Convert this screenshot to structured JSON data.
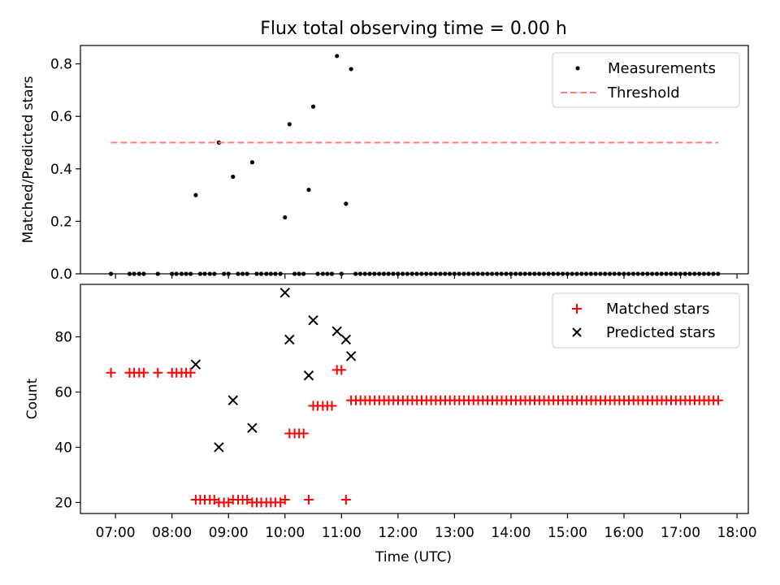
{
  "figure": {
    "title": "Flux total observing time = 0.00 h",
    "xlabel": "Time (UTC)"
  },
  "chart_data": [
    {
      "type": "scatter",
      "panel": "top",
      "title": "Flux total observing time = 0.00 h",
      "xlabel": "",
      "ylabel": "Matched/Predicted stars",
      "x_unit": "UTC hour",
      "xlim": [
        6.38,
        18.2
      ],
      "ylim": [
        0.0,
        0.87
      ],
      "yticks": [
        0.0,
        0.2,
        0.4,
        0.6,
        0.8
      ],
      "ytick_labels": [
        "0.0",
        "0.2",
        "0.4",
        "0.6",
        "0.8"
      ],
      "xticks": [
        7,
        8,
        9,
        10,
        11,
        12,
        13,
        14,
        15,
        16,
        17,
        18
      ],
      "xtick_labels": [
        "07:00",
        "08:00",
        "09:00",
        "10:00",
        "11:00",
        "12:00",
        "13:00",
        "14:00",
        "15:00",
        "16:00",
        "17:00",
        "18:00"
      ],
      "grid": false,
      "legend_position": "top-right",
      "series": [
        {
          "name": "Measurements",
          "marker": "dot",
          "color": "#000000",
          "x": [
            6.92,
            7.25,
            7.33,
            7.42,
            7.5,
            7.75,
            8.0,
            8.08,
            8.17,
            8.25,
            8.33,
            8.42,
            8.5,
            8.58,
            8.67,
            8.75,
            8.83,
            8.92,
            9.0,
            9.08,
            9.17,
            9.25,
            9.33,
            9.42,
            9.5,
            9.58,
            9.67,
            9.75,
            9.83,
            9.92,
            10.0,
            10.08,
            10.17,
            10.25,
            10.33,
            10.42,
            10.5,
            10.58,
            10.67,
            10.75,
            10.83,
            10.92,
            11.0,
            11.08,
            11.17
          ],
          "y": [
            0,
            0,
            0,
            0,
            0,
            0,
            0,
            0,
            0,
            0,
            0,
            0.3,
            0,
            0,
            0,
            0,
            0.5,
            0,
            0,
            0.37,
            0,
            0,
            0,
            0.425,
            0,
            0,
            0,
            0,
            0,
            0,
            0.215,
            0.57,
            0,
            0,
            0,
            0.32,
            0.637,
            0,
            0,
            0,
            0,
            0.83,
            0,
            0.267,
            0.78
          ],
          "extra_zero_x_range": [
            11.25,
            17.67
          ],
          "extra_zero_x_step": 0.0833
        },
        {
          "name": "Threshold",
          "type": "line",
          "style": "dashed",
          "color": "#ff7f7f",
          "x": [
            6.92,
            17.67
          ],
          "y": [
            0.5,
            0.5
          ]
        }
      ]
    },
    {
      "type": "scatter",
      "panel": "bottom",
      "xlabel": "Time (UTC)",
      "ylabel": "Count",
      "x_unit": "UTC hour",
      "xlim": [
        6.38,
        18.2
      ],
      "ylim": [
        16,
        99
      ],
      "yticks": [
        20,
        40,
        60,
        80
      ],
      "ytick_labels": [
        "20",
        "40",
        "60",
        "80"
      ],
      "xticks": [
        7,
        8,
        9,
        10,
        11,
        12,
        13,
        14,
        15,
        16,
        17,
        18
      ],
      "xtick_labels": [
        "07:00",
        "08:00",
        "09:00",
        "10:00",
        "11:00",
        "12:00",
        "13:00",
        "14:00",
        "15:00",
        "16:00",
        "17:00",
        "18:00"
      ],
      "grid": false,
      "legend_position": "top-right",
      "series": [
        {
          "name": "Matched stars",
          "marker": "plus",
          "color": "#ff0000",
          "x": [
            6.92,
            7.25,
            7.33,
            7.42,
            7.5,
            7.75,
            8.0,
            8.08,
            8.17,
            8.25,
            8.33,
            8.42,
            8.5,
            8.58,
            8.67,
            8.75,
            8.83,
            8.92,
            9.0,
            9.08,
            9.17,
            9.25,
            9.33,
            9.42,
            9.5,
            9.58,
            9.67,
            9.75,
            9.83,
            9.92,
            10.0,
            10.08,
            10.17,
            10.25,
            10.33,
            10.42,
            10.5,
            10.58,
            10.67,
            10.75,
            10.83,
            10.92,
            11.0,
            11.08
          ],
          "y": [
            67,
            67,
            67,
            67,
            67,
            67,
            67,
            67,
            67,
            67,
            67,
            21,
            21,
            21,
            21,
            21,
            20,
            20,
            20,
            21,
            21,
            21,
            21,
            20,
            20,
            20,
            20,
            20,
            20,
            20,
            21,
            45,
            45,
            45,
            45,
            21,
            55,
            55,
            55,
            55,
            55,
            68,
            68,
            21
          ],
          "extra_x_range": [
            11.17,
            17.67
          ],
          "extra_x_step": 0.0833,
          "extra_y": 57
        },
        {
          "name": "Predicted stars",
          "marker": "x",
          "color": "#000000",
          "x": [
            8.42,
            8.83,
            9.08,
            9.42,
            10.0,
            10.08,
            10.42,
            10.5,
            10.92,
            11.08,
            11.17
          ],
          "y": [
            70,
            40,
            57,
            47,
            96,
            79,
            66,
            86,
            82,
            79,
            73
          ]
        }
      ]
    }
  ]
}
